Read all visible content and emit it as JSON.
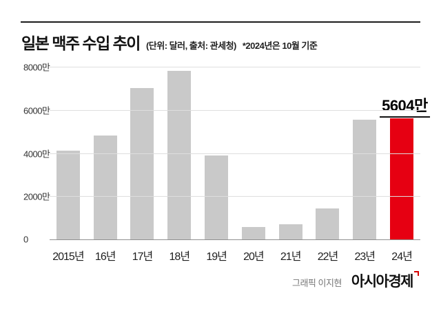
{
  "header": {
    "title": "일본 맥주 수입 추이",
    "subtitle": "(단위: 달러, 출처: 관세청)",
    "note": "*2024년은 10월 기준"
  },
  "chart_data": {
    "type": "bar",
    "title": "일본 맥주 수입 추이",
    "unit_note": "단위: 달러, 출처: 관세청, 2024년은 10월 기준",
    "categories": [
      "2015년",
      "16년",
      "17년",
      "18년",
      "19년",
      "20년",
      "21년",
      "22년",
      "23년",
      "24년"
    ],
    "values": [
      4100,
      4800,
      7000,
      7800,
      3900,
      560,
      690,
      1450,
      5550,
      5604
    ],
    "highlight_index": 9,
    "highlight_label": "5604만",
    "ylim": [
      0,
      8000
    ],
    "yticks": [
      0,
      2000,
      4000,
      6000,
      8000
    ],
    "ytick_labels": [
      "0",
      "2000만",
      "4000만",
      "6000만",
      "8000만"
    ],
    "bar_color": "#c9c9c9",
    "highlight_color": "#e60012",
    "grid": true,
    "legend": "none"
  },
  "footer": {
    "credit": "그래픽 이지현",
    "brand": "아시아경제"
  },
  "colors": {
    "accent_red": "#e60012",
    "bar_gray": "#c9c9c9",
    "rule_black": "#1a1a1a"
  }
}
